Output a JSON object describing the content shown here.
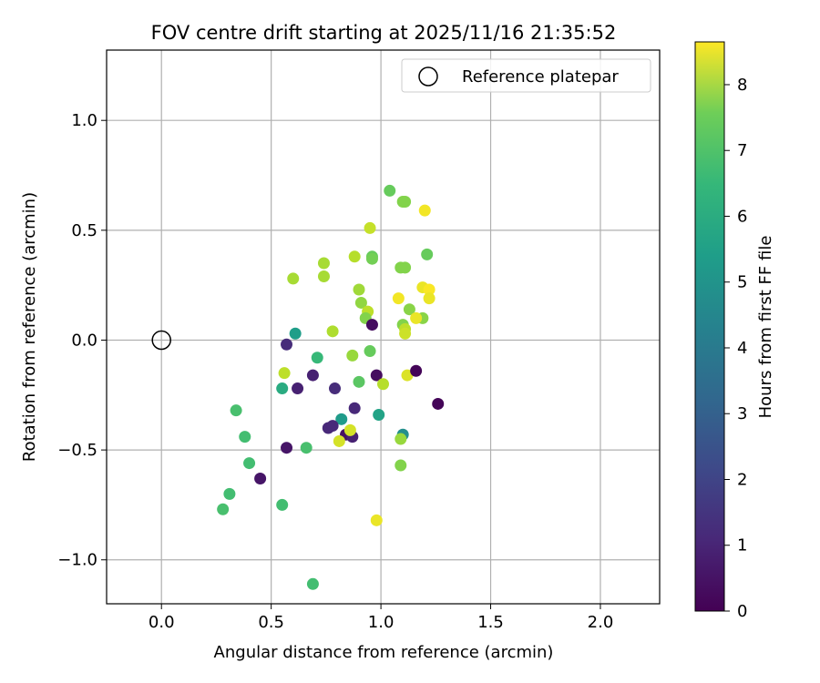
{
  "chart_data": {
    "type": "scatter",
    "title": "FOV centre drift starting at 2025/11/16 21:35:52",
    "xlabel": "Angular distance from reference (arcmin)",
    "ylabel": "Rotation from reference (arcmin)",
    "xlim": [
      -0.25,
      2.27
    ],
    "ylim": [
      -1.2,
      1.32
    ],
    "xticks": [
      0.0,
      0.5,
      1.0,
      1.5,
      2.0
    ],
    "xtick_labels": [
      "0.0",
      "0.5",
      "1.0",
      "1.5",
      "2.0"
    ],
    "yticks": [
      -1.0,
      -0.5,
      0.0,
      0.5,
      1.0
    ],
    "ytick_labels": [
      "−1.0",
      "−0.5",
      "0.0",
      "0.5",
      "1.0"
    ],
    "grid": true,
    "legend": {
      "position": "top-right",
      "entries": [
        "Reference platepar"
      ]
    },
    "colorbar": {
      "label": "Hours from first FF file",
      "colormap": "viridis",
      "range": [
        0,
        8.65
      ],
      "ticks": [
        0,
        1,
        2,
        3,
        4,
        5,
        6,
        7,
        8
      ],
      "tick_labels": [
        "0",
        "1",
        "2",
        "3",
        "4",
        "5",
        "6",
        "7",
        "8"
      ]
    },
    "reference": {
      "x": 0.0,
      "y": 0.0,
      "label": "Reference platepar"
    },
    "series": [
      {
        "name": "FOV centre",
        "x": [
          1.04,
          1.1,
          1.11,
          0.95,
          1.2,
          0.6,
          0.74,
          0.74,
          0.88,
          0.96,
          0.96,
          1.09,
          1.11,
          1.21,
          0.9,
          0.91,
          0.94,
          1.08,
          1.19,
          1.22,
          1.22,
          1.13,
          1.19,
          1.16,
          0.93,
          0.96,
          1.1,
          1.11,
          1.11,
          0.78,
          0.61,
          0.57,
          0.71,
          0.87,
          0.95,
          0.56,
          0.69,
          0.79,
          0.9,
          0.98,
          1.01,
          1.12,
          1.16,
          1.26,
          0.62,
          0.55,
          0.88,
          0.99,
          0.82,
          0.76,
          0.78,
          0.84,
          0.87,
          0.86,
          0.81,
          1.1,
          1.09,
          0.34,
          0.38,
          0.57,
          0.66,
          0.4,
          0.45,
          0.31,
          0.28,
          0.55,
          0.98,
          0.69,
          1.09
        ],
        "y": [
          0.68,
          0.63,
          0.63,
          0.51,
          0.59,
          0.28,
          0.35,
          0.29,
          0.38,
          0.38,
          0.37,
          0.33,
          0.33,
          0.39,
          0.23,
          0.17,
          0.13,
          0.19,
          0.24,
          0.23,
          0.19,
          0.14,
          0.1,
          0.1,
          0.1,
          0.07,
          0.07,
          0.05,
          0.03,
          0.04,
          0.03,
          -0.02,
          -0.08,
          -0.07,
          -0.05,
          -0.15,
          -0.16,
          -0.22,
          -0.19,
          -0.16,
          -0.2,
          -0.16,
          -0.14,
          -0.29,
          -0.22,
          -0.22,
          -0.31,
          -0.34,
          -0.36,
          -0.4,
          -0.39,
          -0.43,
          -0.44,
          -0.41,
          -0.46,
          -0.43,
          -0.45,
          -0.32,
          -0.44,
          -0.49,
          -0.49,
          -0.56,
          -0.63,
          -0.7,
          -0.77,
          -0.75,
          -0.82,
          -1.11,
          -0.57
        ],
        "hours": [
          6.6,
          7.0,
          7.0,
          7.9,
          8.5,
          7.5,
          7.5,
          7.5,
          7.7,
          6.6,
          6.8,
          7.0,
          7.0,
          6.6,
          7.4,
          7.2,
          7.8,
          8.5,
          8.4,
          8.6,
          8.4,
          7.1,
          7.1,
          8.4,
          7.0,
          0.3,
          7.0,
          7.8,
          8.0,
          7.6,
          4.8,
          1.1,
          5.8,
          7.3,
          6.6,
          7.8,
          0.8,
          1.1,
          6.4,
          0.3,
          7.7,
          8.2,
          0.1,
          0.1,
          0.8,
          5.3,
          1.0,
          5.0,
          4.7,
          1.0,
          1.0,
          0.4,
          0.8,
          8.1,
          8.1,
          4.3,
          7.3,
          6.1,
          6.0,
          0.5,
          6.1,
          6.0,
          0.5,
          6.0,
          6.1,
          6.0,
          8.4,
          6.0,
          7.0
        ]
      }
    ]
  }
}
